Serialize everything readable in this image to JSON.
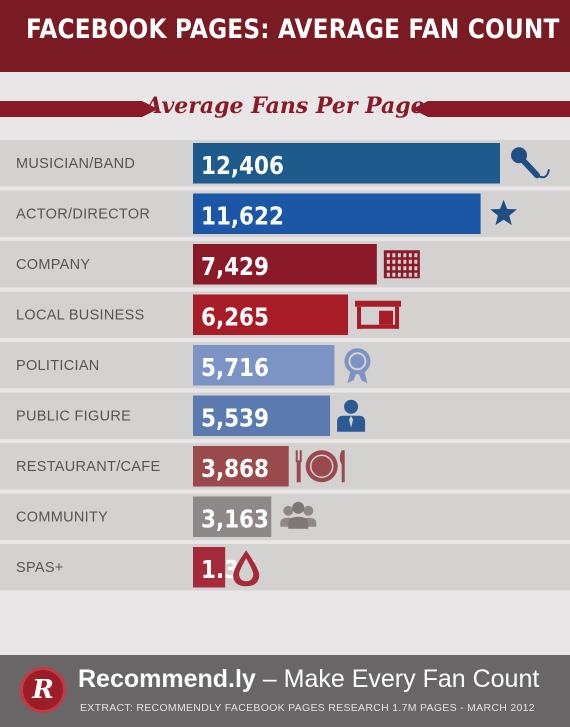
{
  "header": {
    "title": "FACEBOOK PAGES: AVERAGE FAN COUNT"
  },
  "ribbon": {
    "title": "Average Fans Per Page"
  },
  "chart_data": {
    "type": "bar",
    "orientation": "horizontal",
    "title": "Average Fans Per Page",
    "xlabel": "",
    "ylabel": "",
    "categories": [
      "MUSICIAN/BAND",
      "ACTOR/DIRECTOR",
      "COMPANY",
      "LOCAL BUSINESS",
      "POLITICIAN",
      "PUBLIC FIGURE",
      "RESTAURANT/CAFE",
      "COMMUNITY",
      "SPAS+"
    ],
    "values": [
      12406,
      11622,
      7429,
      6265,
      5716,
      5539,
      3868,
      3163,
      1300
    ],
    "value_labels": [
      "12,406",
      "11,622",
      "7,429",
      "6,265",
      "5,716",
      "5,539",
      "3,868",
      "3,163",
      "1.3K"
    ],
    "colors": [
      "#1f5a8c",
      "#1c56a6",
      "#8b1a28",
      "#a81c28",
      "#7b94c4",
      "#5b7bb0",
      "#9a4a4c",
      "#8f8888",
      "#a52a3a"
    ],
    "icons": [
      "microphone-icon",
      "star-icon",
      "building-icon",
      "storefront-icon",
      "ribbon-award-icon",
      "person-icon",
      "fork-plate-knife-icon",
      "group-icon",
      "drop-icon"
    ],
    "xlim": [
      0,
      12406
    ],
    "grid": false,
    "legend": "none"
  },
  "footer": {
    "brand": "Recommend.ly",
    "tagline": " – Make Every Fan Count",
    "logo_letter": "R",
    "extract": "EXTRACT: RECOMMENDLY FACEBOOK PAGES RESEARCH 1.7M PAGES - MARCH 2012"
  },
  "colors": {
    "header_bg": "#7a1a22",
    "page_bg": "#e8e6e6",
    "row_bg": "#d4d1d1",
    "footer_bg": "#6a6566",
    "accent": "#8b1a28"
  }
}
